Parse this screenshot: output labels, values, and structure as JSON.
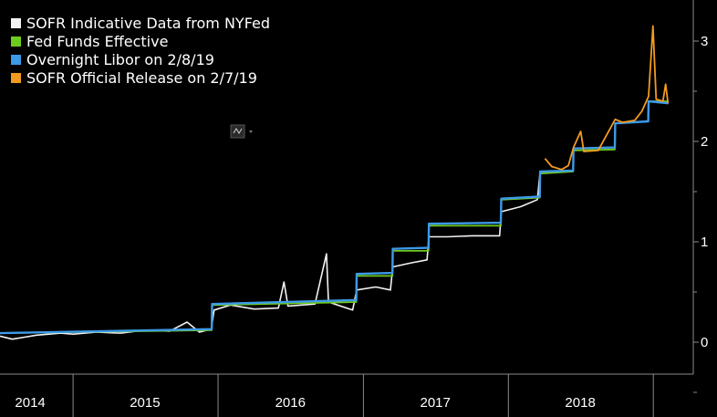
{
  "chart_data": {
    "type": "line",
    "title": "",
    "xlabel": "",
    "ylabel": "",
    "x_range": [
      "2014-07-01",
      "2019-02-20"
    ],
    "ylim": [
      -0.3,
      3.35
    ],
    "y_ticks": [
      0,
      1,
      2,
      3
    ],
    "y_tick_labels": [
      "0",
      "1",
      "2",
      "3"
    ],
    "x_tick_labels": [
      {
        "label": "2014",
        "center": "2014-09-15"
      },
      {
        "label": "2015",
        "center": "2015-07-01"
      },
      {
        "label": "2016",
        "center": "2016-07-01"
      },
      {
        "label": "2017",
        "center": "2017-07-01"
      },
      {
        "label": "2018",
        "center": "2018-07-01"
      }
    ],
    "x_dividers": [
      "2015-01-01",
      "2016-01-01",
      "2017-01-01",
      "2018-01-01",
      "2019-01-01"
    ],
    "grid": false,
    "legend_position": "top-left",
    "background": "#000000",
    "series": [
      {
        "name": "SOFR Indicative Data from NYFed",
        "color": "#f2f2f2",
        "points": [
          [
            "2014-07-01",
            0.06
          ],
          [
            "2014-08-01",
            0.03
          ],
          [
            "2014-09-01",
            0.05
          ],
          [
            "2014-10-01",
            0.07
          ],
          [
            "2014-11-01",
            0.08
          ],
          [
            "2014-12-01",
            0.09
          ],
          [
            "2015-01-01",
            0.08
          ],
          [
            "2015-03-01",
            0.1
          ],
          [
            "2015-05-01",
            0.09
          ],
          [
            "2015-07-01",
            0.12
          ],
          [
            "2015-09-01",
            0.11
          ],
          [
            "2015-10-15",
            0.2
          ],
          [
            "2015-11-15",
            0.1
          ],
          [
            "2015-12-15",
            0.13
          ],
          [
            "2015-12-22",
            0.32
          ],
          [
            "2016-02-01",
            0.37
          ],
          [
            "2016-04-01",
            0.33
          ],
          [
            "2016-06-01",
            0.34
          ],
          [
            "2016-06-15",
            0.6
          ],
          [
            "2016-06-25",
            0.36
          ],
          [
            "2016-09-01",
            0.38
          ],
          [
            "2016-09-30",
            0.88
          ],
          [
            "2016-10-05",
            0.4
          ],
          [
            "2016-12-05",
            0.32
          ],
          [
            "2016-12-15",
            0.52
          ],
          [
            "2017-02-01",
            0.55
          ],
          [
            "2017-03-10",
            0.52
          ],
          [
            "2017-03-16",
            0.75
          ],
          [
            "2017-05-01",
            0.79
          ],
          [
            "2017-06-10",
            0.82
          ],
          [
            "2017-06-15",
            1.05
          ],
          [
            "2017-08-01",
            1.05
          ],
          [
            "2017-10-01",
            1.06
          ],
          [
            "2017-12-10",
            1.06
          ],
          [
            "2017-12-14",
            1.3
          ],
          [
            "2018-02-01",
            1.35
          ],
          [
            "2018-03-15",
            1.42
          ],
          [
            "2018-03-22",
            1.7
          ]
        ]
      },
      {
        "name": "Fed Funds Effective",
        "color": "#6ecb1e",
        "points": [
          [
            "2014-07-01",
            0.09
          ],
          [
            "2015-12-16",
            0.12
          ],
          [
            "2015-12-17",
            0.37
          ],
          [
            "2016-12-14",
            0.4
          ],
          [
            "2016-12-15",
            0.66
          ],
          [
            "2017-03-15",
            0.66
          ],
          [
            "2017-03-16",
            0.91
          ],
          [
            "2017-06-14",
            0.91
          ],
          [
            "2017-06-15",
            1.16
          ],
          [
            "2017-12-13",
            1.16
          ],
          [
            "2017-12-14",
            1.42
          ],
          [
            "2018-03-21",
            1.44
          ],
          [
            "2018-03-22",
            1.68
          ],
          [
            "2018-06-13",
            1.7
          ],
          [
            "2018-06-14",
            1.91
          ],
          [
            "2018-09-26",
            1.92
          ],
          [
            "2018-09-27",
            2.18
          ],
          [
            "2018-12-19",
            2.2
          ],
          [
            "2018-12-20",
            2.4
          ],
          [
            "2019-02-08",
            2.4
          ]
        ]
      },
      {
        "name": "Overnight Libor on 2/8/19",
        "color": "#3d9ae8",
        "points": [
          [
            "2014-07-01",
            0.09
          ],
          [
            "2015-12-16",
            0.13
          ],
          [
            "2015-12-17",
            0.38
          ],
          [
            "2016-12-14",
            0.42
          ],
          [
            "2016-12-15",
            0.68
          ],
          [
            "2017-03-15",
            0.69
          ],
          [
            "2017-03-16",
            0.93
          ],
          [
            "2017-06-14",
            0.94
          ],
          [
            "2017-06-15",
            1.18
          ],
          [
            "2017-12-13",
            1.19
          ],
          [
            "2017-12-14",
            1.43
          ],
          [
            "2018-03-21",
            1.45
          ],
          [
            "2018-03-22",
            1.7
          ],
          [
            "2018-06-13",
            1.71
          ],
          [
            "2018-06-14",
            1.93
          ],
          [
            "2018-09-26",
            1.94
          ],
          [
            "2018-09-27",
            2.18
          ],
          [
            "2018-12-19",
            2.2
          ],
          [
            "2018-12-20",
            2.4
          ],
          [
            "2019-02-08",
            2.38
          ]
        ]
      },
      {
        "name": "SOFR Official Release on 2/7/19",
        "color": "#f39b1e",
        "points": [
          [
            "2018-04-03",
            1.83
          ],
          [
            "2018-04-20",
            1.75
          ],
          [
            "2018-05-15",
            1.72
          ],
          [
            "2018-06-01",
            1.76
          ],
          [
            "2018-06-14",
            1.94
          ],
          [
            "2018-07-02",
            2.1
          ],
          [
            "2018-07-10",
            1.9
          ],
          [
            "2018-08-15",
            1.91
          ],
          [
            "2018-09-27",
            2.22
          ],
          [
            "2018-10-15",
            2.19
          ],
          [
            "2018-11-15",
            2.21
          ],
          [
            "2018-12-03",
            2.3
          ],
          [
            "2018-12-20",
            2.45
          ],
          [
            "2018-12-31",
            3.15
          ],
          [
            "2019-01-08",
            2.42
          ],
          [
            "2019-01-25",
            2.4
          ],
          [
            "2019-02-01",
            2.57
          ],
          [
            "2019-02-07",
            2.38
          ]
        ]
      }
    ]
  },
  "toolbar": {
    "mini_icon": "chart-type-icon"
  }
}
